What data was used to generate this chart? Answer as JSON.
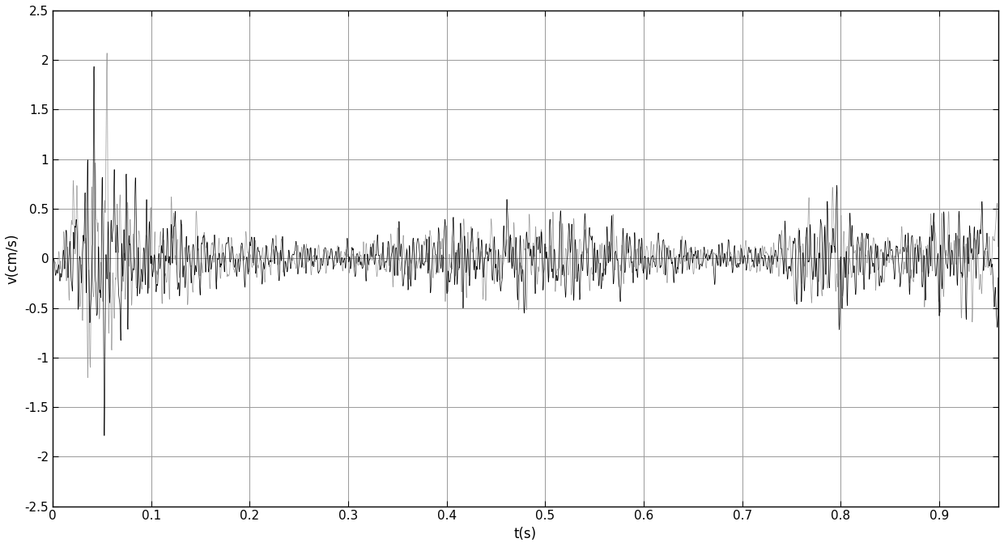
{
  "title": "",
  "xlabel": "t(s)",
  "ylabel": "v(cm/s)",
  "xlim": [
    0,
    0.96
  ],
  "ylim": [
    -2.5,
    2.5
  ],
  "yticks": [
    -2.5,
    -2.0,
    -1.5,
    -1.0,
    -0.5,
    0.0,
    0.5,
    1.0,
    1.5,
    2.0,
    2.5
  ],
  "xticks": [
    0,
    0.1,
    0.2,
    0.3,
    0.4,
    0.5,
    0.6,
    0.7,
    0.8,
    0.9
  ],
  "grid_color": "#999999",
  "line_color1": "#000000",
  "line_color2": "#888888",
  "linewidth": 0.5,
  "background_color": "#ffffff",
  "figsize": [
    12.4,
    6.76
  ],
  "dpi": 100
}
